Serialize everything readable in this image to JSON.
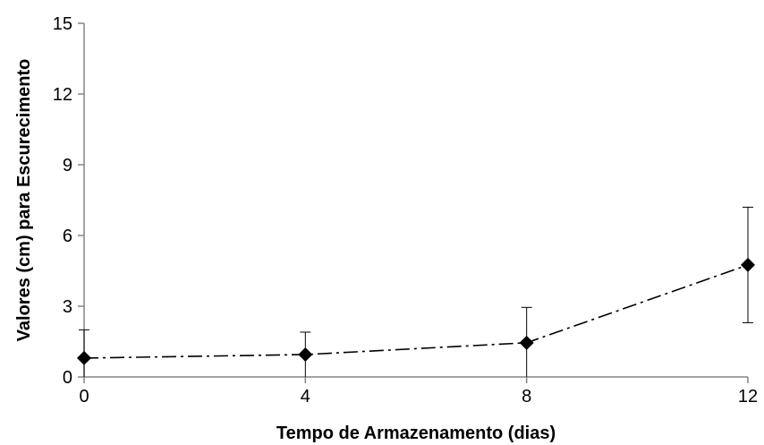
{
  "chart_data": {
    "type": "line",
    "title": "",
    "xlabel": "Tempo de Armazenamento (dias)",
    "ylabel": "Valores (cm) para Escurecimento",
    "x": [
      0,
      4,
      8,
      12
    ],
    "xticks": [
      "0",
      "4",
      "8",
      "12"
    ],
    "xlim": [
      0,
      12
    ],
    "yticks": [
      "0",
      "3",
      "6",
      "9",
      "12",
      "15"
    ],
    "ylim": [
      0,
      15
    ],
    "grid": false,
    "series": [
      {
        "values": [
          0.8,
          0.95,
          1.45,
          4.75
        ],
        "error": [
          1.2,
          0.95,
          1.5,
          2.45
        ],
        "marker": "diamond",
        "line_style": "dash-dot",
        "color": "#000000"
      }
    ]
  }
}
